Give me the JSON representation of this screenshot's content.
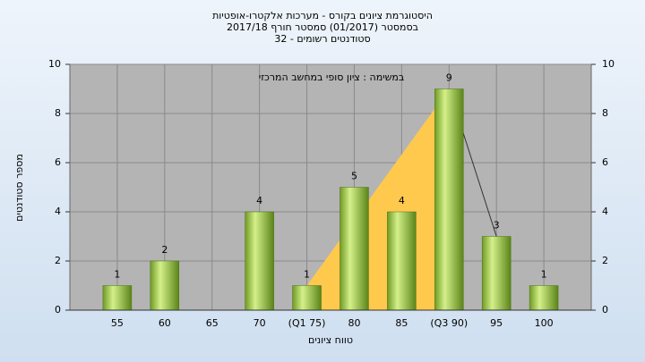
{
  "chart_data": {
    "type": "bar",
    "title_lines": [
      "היסטוגרמת ציונים בקורס - מערכות אלקטרו-אופטיות",
      "בסמסטר  (01/2017)  סמסטר חורף 2017/18",
      "סטודנטים רשומים - 32"
    ],
    "annotation": "במשימה : ציון סופי במחשב המרכזי",
    "x_label": "טווח ציונים",
    "y_label": "מספר סטודנטים",
    "categories": [
      "55",
      "60",
      "65",
      "70",
      "(Q1 75)",
      "80",
      "85",
      "(Q3 90)",
      "95",
      "100"
    ],
    "values": [
      1,
      2,
      0,
      4,
      1,
      5,
      4,
      9,
      3,
      1
    ],
    "color": "#8dbb3c",
    "overlays": [
      {
        "type": "area",
        "color": "#ffc94d",
        "values": [
          null,
          null,
          null,
          null,
          1,
          null,
          null,
          9,
          null,
          null
        ]
      },
      {
        "type": "line",
        "color": "#333333",
        "values": [
          null,
          null,
          null,
          null,
          null,
          null,
          null,
          9,
          3,
          null
        ]
      }
    ],
    "ylim": [
      0,
      10
    ],
    "yticks": [
      0,
      2,
      4,
      6,
      8,
      10
    ],
    "y2lim": [
      0,
      10
    ],
    "y2ticks": [
      0,
      2,
      4,
      6,
      8,
      10
    ],
    "grid": true
  }
}
